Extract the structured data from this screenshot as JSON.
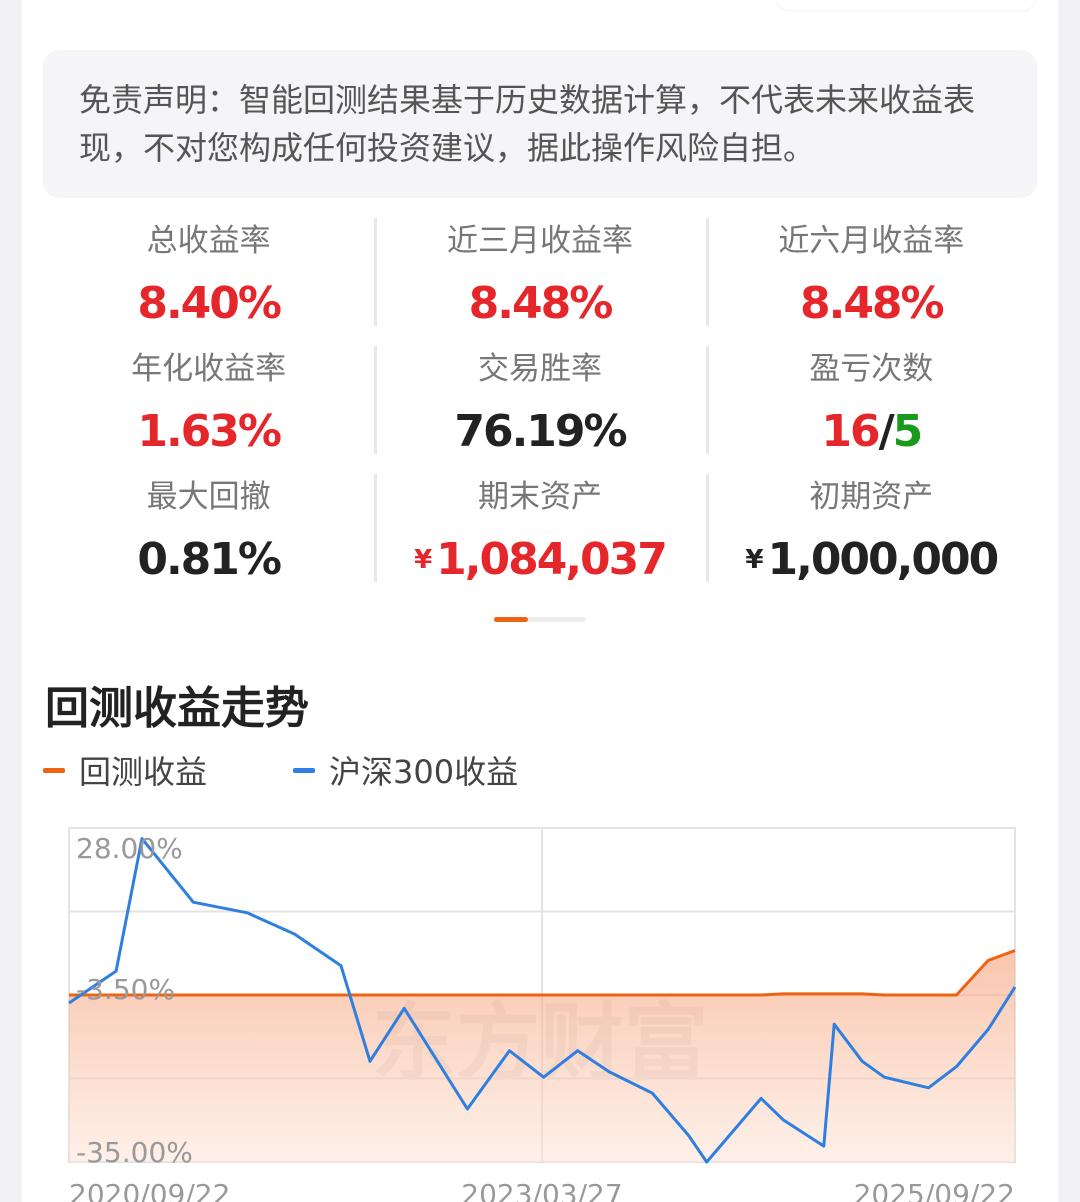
{
  "disclaimer": "免责声明：智能回测结果基于历史数据计算，不代表未来收益表现，不对您构成任何投资建议，据此操作风险自担。",
  "stats": [
    {
      "label": "总收益率",
      "value": "8.40%",
      "tone": "red"
    },
    {
      "label": "近三月收益率",
      "value": "8.48%",
      "tone": "red"
    },
    {
      "label": "近六月收益率",
      "value": "8.48%",
      "tone": "red"
    },
    {
      "label": "年化收益率",
      "value": "1.63%",
      "tone": "red"
    },
    {
      "label": "交易胜率",
      "value": "76.19%",
      "tone": "dark"
    },
    {
      "label": "盈亏次数",
      "wins": "16",
      "sep": "/",
      "losses": "5"
    },
    {
      "label": "最大回撤",
      "value": "0.81%",
      "tone": "dark"
    },
    {
      "label": "期末资产",
      "currency": "¥",
      "value": "1,084,037",
      "tone": "red"
    },
    {
      "label": "初期资产",
      "currency": "¥",
      "value": "1,000,000",
      "tone": "dark"
    }
  ],
  "section_title": "回测收益走势",
  "colors": {
    "strategy": "#f06213",
    "benchmark": "#2f7fe0",
    "red": "#e5262b",
    "green": "#1a9a1a"
  },
  "chart_data": {
    "type": "line",
    "title": "",
    "xlabel": "",
    "ylabel": "",
    "ylim": [
      -35,
      28
    ],
    "yticks": [
      "28.00%",
      "-3.50%",
      "-35.00%"
    ],
    "xticks": [
      "2020/09/22",
      "2023/03/27",
      "2025/09/22"
    ],
    "x": [
      "2020/09/22",
      "2020/12/22",
      "2021/02/10",
      "2021/05/20",
      "2021/09/01",
      "2021/12/01",
      "2022/03/01",
      "2022/04/26",
      "2022/07/01",
      "2022/10/31",
      "2023/01/20",
      "2023/03/27",
      "2023/06/01",
      "2023/08/01",
      "2023/10/23",
      "2024/01/01",
      "2024/02/05",
      "2024/05/20",
      "2024/07/01",
      "2024/09/18",
      "2024/10/08",
      "2024/12/01",
      "2025/01/13",
      "2025/04/08",
      "2025/06/01",
      "2025/08/01",
      "2025/09/22"
    ],
    "series": [
      {
        "name": "回测收益",
        "color": "#f06213",
        "fill": true,
        "values": [
          -3.5,
          -3.5,
          -3.5,
          -3.5,
          -3.5,
          -3.5,
          -3.5,
          -3.5,
          -3.5,
          -3.5,
          -3.5,
          -3.5,
          -3.5,
          -3.5,
          -3.5,
          -3.5,
          -3.5,
          -3.5,
          -3.3,
          -3.3,
          -3.3,
          -3.3,
          -3.5,
          -3.5,
          -3.5,
          3.0,
          4.9
        ]
      },
      {
        "name": "沪深300收益",
        "color": "#2f7fe0",
        "fill": false,
        "values": [
          -5,
          1,
          26,
          14,
          12,
          8,
          2,
          -16,
          -6,
          -25,
          -14,
          -19,
          -14,
          -18,
          -22,
          -30,
          -35,
          -23,
          -27,
          -32,
          -9,
          -16,
          -19,
          -21,
          -17,
          -10,
          -2
        ]
      }
    ]
  },
  "watermark": "东方财富"
}
